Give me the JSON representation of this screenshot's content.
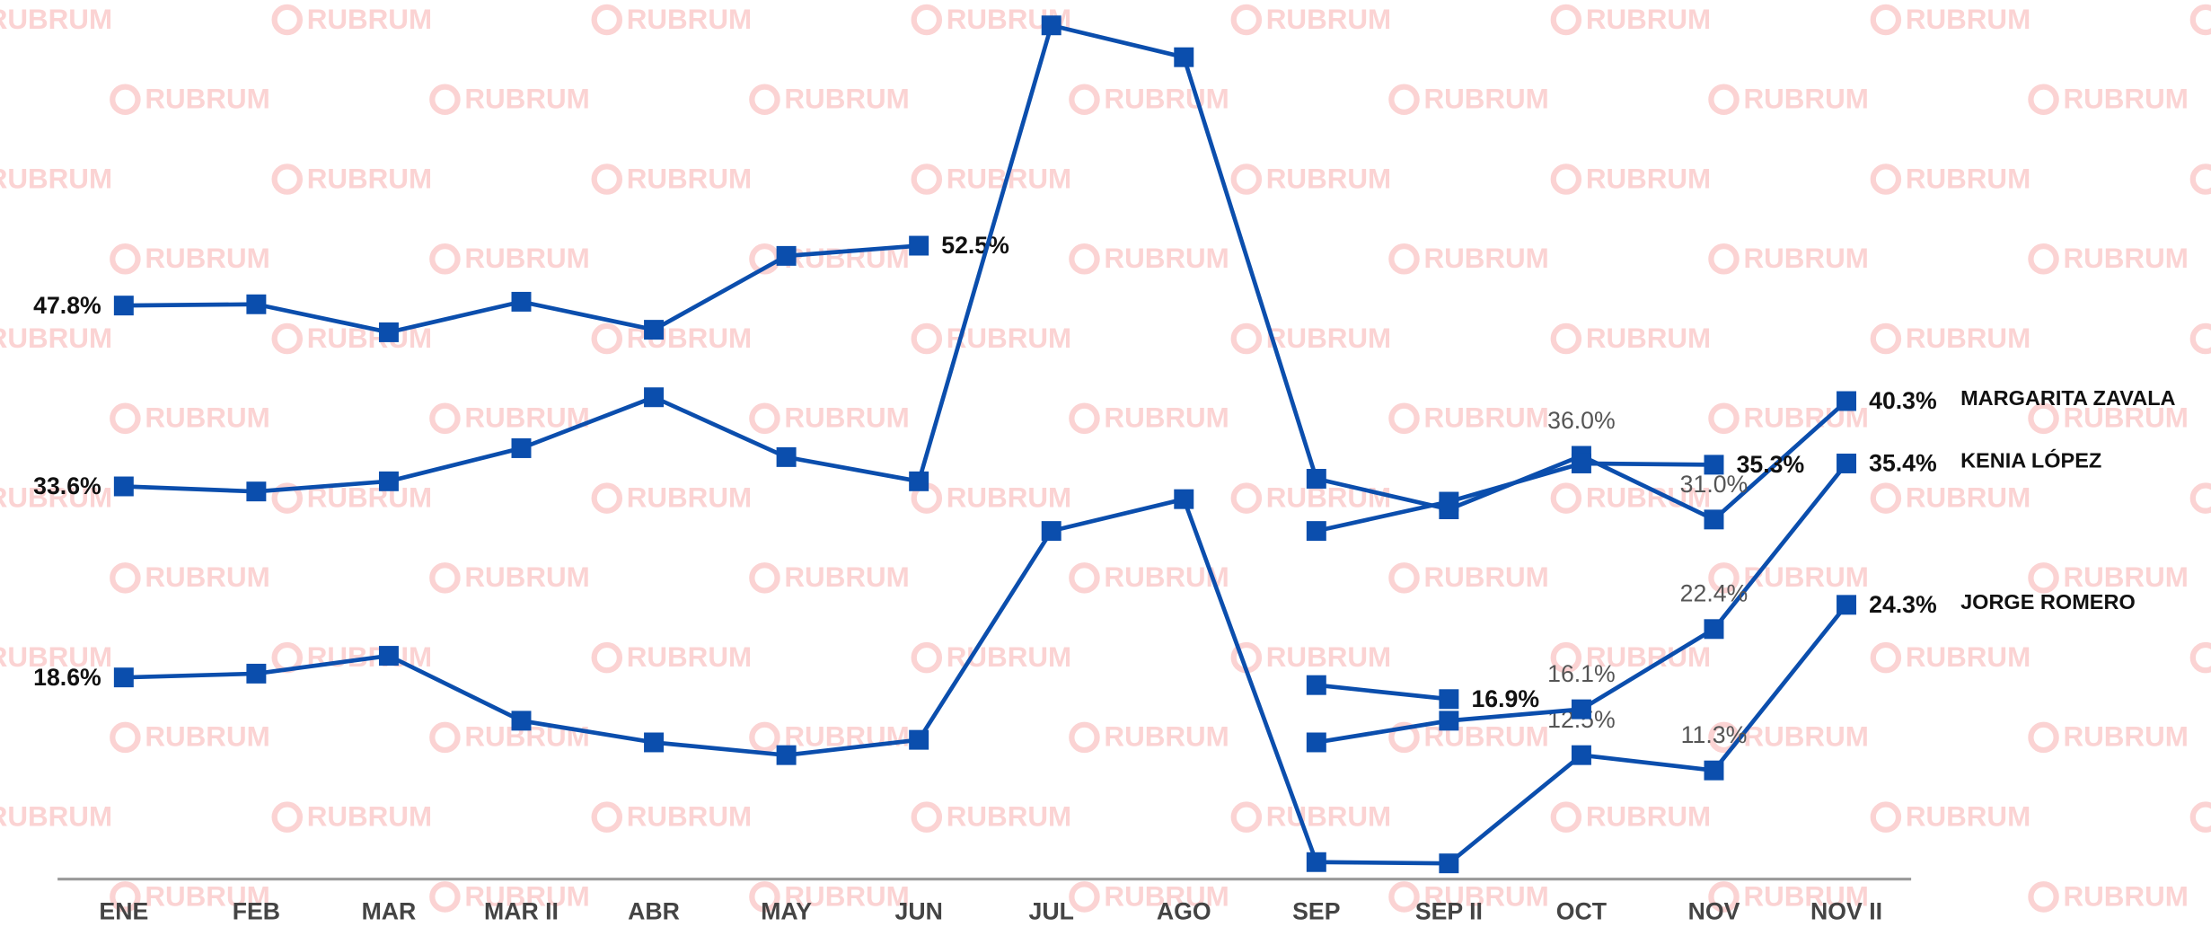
{
  "watermark": "RUBRUM",
  "chart_data": {
    "type": "line",
    "categories": [
      "ENE",
      "FEB",
      "MAR",
      "MAR II",
      "ABR",
      "MAY",
      "JUN",
      "JUL",
      "AGO",
      "SEP",
      "SEP II",
      "OCT",
      "NOV",
      "NOV II"
    ],
    "color": "#0b4ead",
    "series": [
      {
        "values": [
          47.8,
          47.9,
          45.7,
          48.1,
          45.9,
          51.7,
          52.5,
          null,
          null,
          null,
          null,
          null,
          null,
          null
        ],
        "value_labels": [
          "47.8%",
          null,
          null,
          null,
          null,
          null,
          "52.5%",
          null,
          null,
          null,
          null,
          null,
          null,
          null
        ]
      },
      {
        "name": "MARGARITA ZAVALA",
        "values": [
          33.6,
          33.2,
          34.0,
          36.6,
          40.6,
          35.9,
          34.0,
          69.8,
          67.3,
          34.2,
          31.8,
          36.0,
          31.0,
          40.3
        ],
        "value_labels": [
          "33.6%",
          null,
          null,
          null,
          null,
          null,
          null,
          null,
          null,
          null,
          null,
          "36.0%",
          "31.0%",
          "40.3%"
        ]
      },
      {
        "values": [
          null,
          null,
          null,
          null,
          null,
          null,
          null,
          null,
          null,
          30.1,
          32.4,
          35.4,
          35.3,
          null
        ],
        "value_labels": [
          null,
          null,
          null,
          null,
          null,
          null,
          null,
          null,
          null,
          null,
          null,
          null,
          "35.3%",
          null
        ]
      },
      {
        "name": "JORGE ROMERO",
        "values": [
          18.6,
          18.9,
          20.3,
          15.2,
          13.5,
          12.5,
          13.7,
          30.1,
          32.6,
          4.1,
          4.0,
          12.5,
          11.3,
          24.3
        ],
        "value_labels": [
          "18.6%",
          null,
          null,
          null,
          null,
          null,
          null,
          null,
          null,
          null,
          null,
          "12.5%",
          "11.3%",
          "24.3%"
        ]
      },
      {
        "values": [
          null,
          null,
          null,
          null,
          null,
          null,
          null,
          null,
          null,
          18.0,
          16.9,
          null,
          null,
          null
        ],
        "value_labels": [
          null,
          null,
          null,
          null,
          null,
          null,
          null,
          null,
          null,
          null,
          "16.9%",
          null,
          null,
          null
        ]
      },
      {
        "name": "KENIA LÓPEZ",
        "values": [
          null,
          null,
          null,
          null,
          null,
          null,
          null,
          null,
          null,
          13.5,
          15.2,
          16.1,
          22.4,
          35.4
        ],
        "value_labels": [
          null,
          null,
          null,
          null,
          null,
          null,
          null,
          null,
          null,
          null,
          null,
          "16.1%",
          "22.4%",
          "35.4%"
        ]
      }
    ]
  }
}
